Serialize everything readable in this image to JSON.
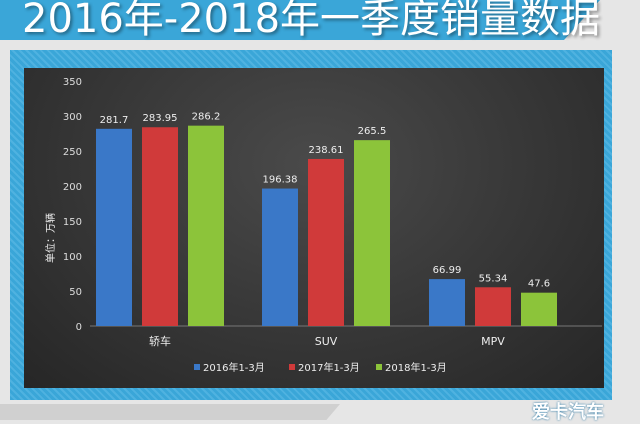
{
  "title": "2016年-2018年一季度销量数据",
  "logo": "爱卡汽车",
  "chart_data": {
    "type": "bar",
    "title": "2016年-2018年一季度销量数据",
    "ylabel": "单位：万辆",
    "xlabel": "",
    "categories": [
      "轿车",
      "SUV",
      "MPV"
    ],
    "ylim": [
      0,
      350
    ],
    "yticks": [
      0,
      50,
      100,
      150,
      200,
      250,
      300,
      350
    ],
    "legend_position": "bottom",
    "grid": false,
    "series": [
      {
        "name": "2016年1-3月",
        "color": "#3a78c8",
        "values": [
          281.7,
          196.38,
          66.99
        ]
      },
      {
        "name": "2017年1-3月",
        "color": "#d03a3a",
        "values": [
          283.95,
          238.61,
          55.34
        ]
      },
      {
        "name": "2018年1-3月",
        "color": "#8cc43a",
        "values": [
          286.2,
          265.5,
          47.6
        ]
      }
    ]
  }
}
